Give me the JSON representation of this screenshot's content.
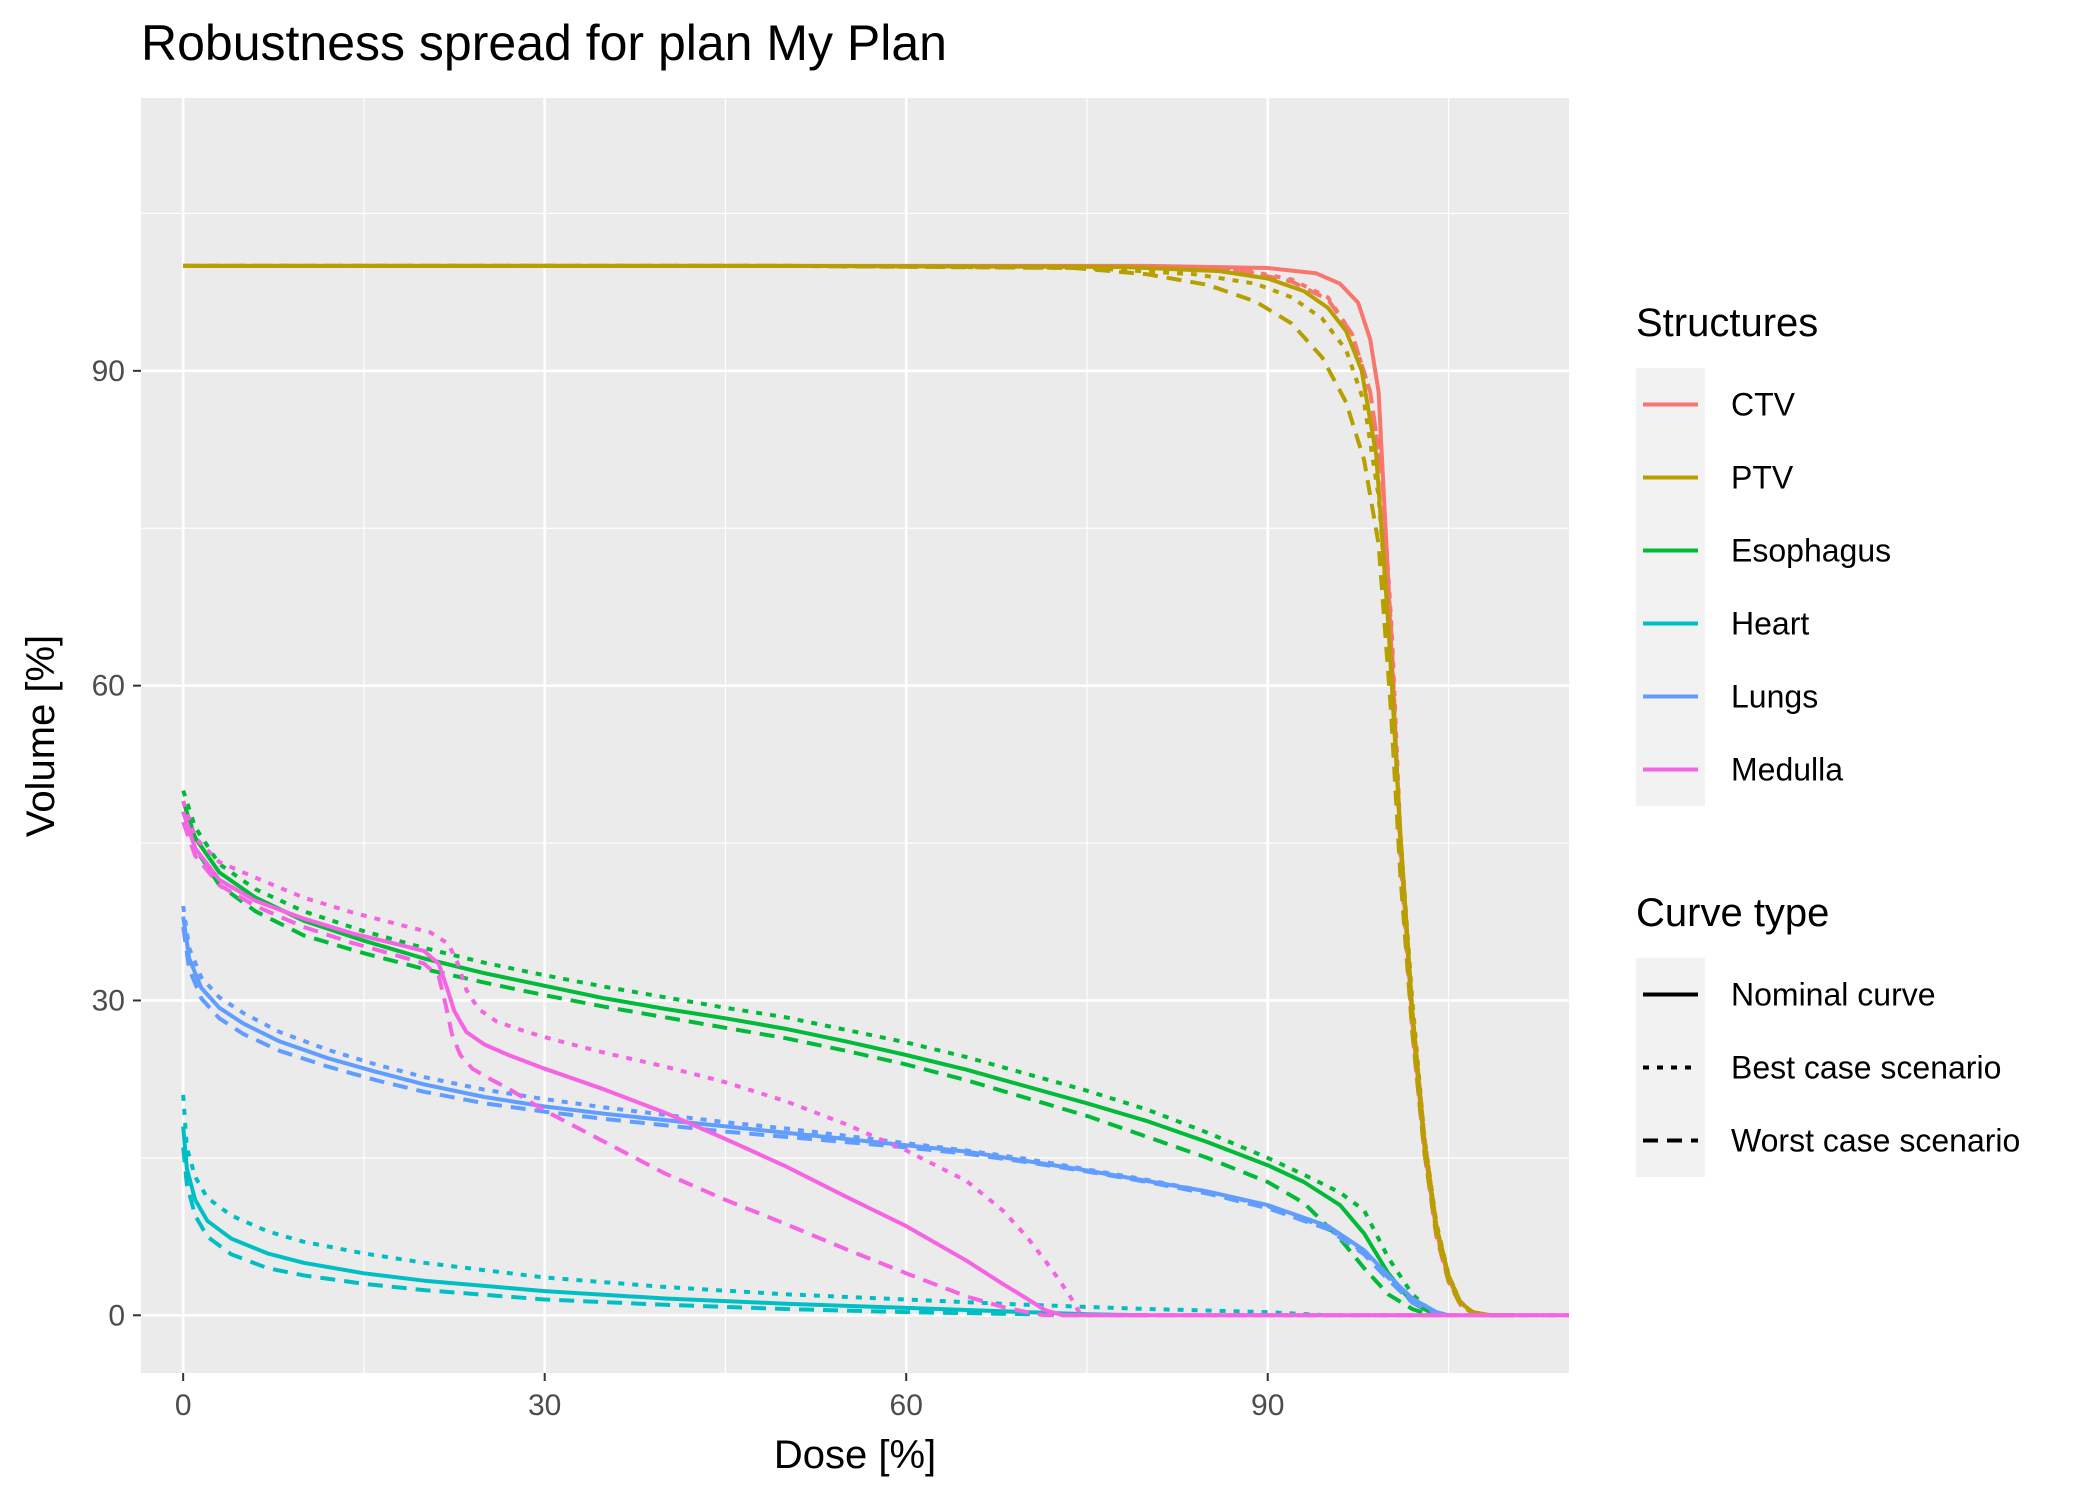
{
  "chart_data": {
    "type": "line",
    "title": "Robustness spread for plan My Plan",
    "xlabel": "Dose [%]",
    "ylabel": "Volume [%]",
    "xlim": [
      -3.5,
      115
    ],
    "ylim": [
      -5.5,
      116
    ],
    "x_ticks": [
      0,
      30,
      60,
      90
    ],
    "y_ticks": [
      0,
      30,
      60,
      90
    ],
    "grid": true,
    "legend_position": "right",
    "structures_legend": {
      "title": "Structures",
      "entries": [
        {
          "name": "CTV",
          "color": "#F8766D"
        },
        {
          "name": "PTV",
          "color": "#B79F00"
        },
        {
          "name": "Esophagus",
          "color": "#00BA38"
        },
        {
          "name": "Heart",
          "color": "#00BFC4"
        },
        {
          "name": "Lungs",
          "color": "#619CFF"
        },
        {
          "name": "Medulla",
          "color": "#F564E3"
        }
      ]
    },
    "curve_type_legend": {
      "title": "Curve type",
      "entries": [
        {
          "name": "Nominal curve",
          "dash": "solid"
        },
        {
          "name": "Best case scenario",
          "dash": "dotted"
        },
        {
          "name": "Worst case scenario",
          "dash": "dashed"
        }
      ]
    },
    "series": [
      {
        "structure": "CTV",
        "curve": "Nominal curve",
        "x": [
          0,
          40,
          80,
          90,
          94,
          96,
          97.5,
          98.5,
          99.2,
          100,
          101,
          102,
          103,
          104,
          105,
          106,
          107,
          108,
          110.5
        ],
        "y": [
          100,
          100,
          100,
          99.8,
          99.3,
          98.3,
          96.5,
          93,
          88,
          70,
          45,
          28,
          16,
          8,
          3.5,
          1.2,
          0.3,
          0,
          0
        ]
      },
      {
        "structure": "CTV",
        "curve": "Best case scenario",
        "x": [
          0,
          50,
          80,
          88,
          92,
          95,
          97,
          98.5,
          99.5,
          100.3,
          101,
          102,
          103,
          104,
          105,
          106,
          107,
          108.5,
          110.5
        ],
        "y": [
          100,
          100,
          99.9,
          99.6,
          98.7,
          97,
          93.5,
          88,
          80,
          65,
          46,
          29,
          17,
          8.5,
          3.8,
          1.3,
          0.3,
          0,
          0
        ]
      },
      {
        "structure": "CTV",
        "curve": "Worst case scenario",
        "x": [
          0,
          50,
          80,
          88,
          92,
          95,
          97,
          98.5,
          99.5,
          100.3,
          101,
          102,
          103,
          104,
          105,
          106,
          107,
          108.5,
          110.5
        ],
        "y": [
          100,
          100,
          99.9,
          99.5,
          98.5,
          96.8,
          93.5,
          88,
          80,
          64,
          44,
          27,
          15.5,
          7.5,
          3.2,
          1,
          0.2,
          0,
          0
        ]
      },
      {
        "structure": "PTV",
        "curve": "Nominal curve",
        "x": [
          0,
          50,
          78,
          86,
          90,
          93,
          95,
          96.5,
          97.8,
          99,
          100,
          101,
          102,
          103,
          104,
          105,
          106,
          107,
          108.5,
          110.5
        ],
        "y": [
          100,
          100,
          99.9,
          99.5,
          98.8,
          97.6,
          96,
          93.8,
          90,
          82,
          66,
          46,
          29,
          16.5,
          8.5,
          3.8,
          1.2,
          0.3,
          0,
          0
        ]
      },
      {
        "structure": "PTV",
        "curve": "Best case scenario",
        "x": [
          0,
          50,
          75,
          84,
          89,
          92,
          94.5,
          96.5,
          98,
          99.2,
          100.2,
          101,
          102,
          103,
          104,
          105,
          106,
          107,
          108.5,
          110.5
        ],
        "y": [
          100,
          100,
          99.8,
          99.2,
          98.3,
          97,
          95,
          92,
          87,
          78,
          63,
          46,
          30,
          17,
          8.8,
          3.9,
          1.2,
          0.3,
          0,
          0
        ]
      },
      {
        "structure": "PTV",
        "curve": "Worst case scenario",
        "x": [
          0,
          50,
          74,
          80,
          85,
          89,
          92,
          94.5,
          96.5,
          98,
          99.2,
          100.2,
          101,
          102,
          103,
          104,
          105,
          106,
          107,
          108.5,
          110.5
        ],
        "y": [
          100,
          100,
          99.8,
          99.2,
          98.2,
          96.6,
          94.5,
          91.3,
          87,
          81.5,
          73.5,
          58,
          42,
          27,
          15.5,
          7.8,
          3.3,
          1,
          0.2,
          0,
          0
        ]
      },
      {
        "structure": "Esophagus",
        "curve": "Nominal curve",
        "x": [
          0,
          1,
          3,
          6,
          10,
          15,
          20,
          25,
          30,
          35,
          40,
          45,
          50,
          55,
          60,
          65,
          70,
          75,
          80,
          85,
          90,
          93,
          96,
          98,
          100,
          102,
          104
        ],
        "y": [
          49,
          45.5,
          42.2,
          39.8,
          37.6,
          35.7,
          34,
          32.6,
          31.4,
          30.2,
          29.2,
          28.3,
          27.3,
          26.1,
          24.8,
          23.4,
          21.8,
          20.2,
          18.5,
          16.5,
          14.3,
          12.7,
          10.5,
          7.8,
          4,
          1.2,
          0
        ]
      },
      {
        "structure": "Esophagus",
        "curve": "Best case scenario",
        "x": [
          0,
          1,
          3,
          6,
          10,
          15,
          20,
          25,
          30,
          35,
          40,
          45,
          50,
          55,
          60,
          65,
          70,
          75,
          80,
          85,
          90,
          93,
          96,
          98,
          100,
          102,
          104
        ],
        "y": [
          50,
          46.5,
          43,
          40.6,
          38.5,
          36.6,
          35,
          33.6,
          32.4,
          31.3,
          30.3,
          29.3,
          28.4,
          27.2,
          26,
          24.6,
          23,
          21.4,
          19.6,
          17.4,
          15,
          13.4,
          11.7,
          10,
          5.5,
          2,
          0
        ]
      },
      {
        "structure": "Esophagus",
        "curve": "Worst case scenario",
        "x": [
          0,
          1,
          3,
          6,
          10,
          15,
          20,
          25,
          30,
          35,
          40,
          45,
          50,
          55,
          60,
          65,
          70,
          75,
          80,
          85,
          90,
          93,
          96,
          98,
          100,
          102,
          103.5
        ],
        "y": [
          48,
          44.5,
          41,
          38.5,
          36.2,
          34.5,
          33,
          31.7,
          30.5,
          29.4,
          28.4,
          27.4,
          26.4,
          25.2,
          23.9,
          22.4,
          20.7,
          19,
          17,
          15,
          12.7,
          10.7,
          7.3,
          4.5,
          2,
          0.6,
          0
        ]
      },
      {
        "structure": "Heart",
        "curve": "Nominal curve",
        "x": [
          0,
          0.3,
          1,
          2,
          4,
          7,
          10,
          15,
          20,
          30,
          40,
          50,
          60,
          70,
          75,
          80
        ],
        "y": [
          18,
          14,
          11,
          9,
          7.3,
          5.9,
          5,
          4,
          3.3,
          2.3,
          1.6,
          1.1,
          0.7,
          0.3,
          0.1,
          0
        ]
      },
      {
        "structure": "Heart",
        "curve": "Best case scenario",
        "x": [
          0,
          0.3,
          1,
          2,
          4,
          7,
          10,
          15,
          20,
          30,
          40,
          50,
          60,
          70,
          80,
          90,
          95
        ],
        "y": [
          21,
          16,
          13.2,
          11.2,
          9.5,
          8,
          7,
          5.9,
          5,
          3.6,
          2.7,
          2,
          1.5,
          1,
          0.6,
          0.3,
          0
        ]
      },
      {
        "structure": "Heart",
        "curve": "Worst case scenario",
        "x": [
          0,
          0.3,
          1,
          2,
          4,
          7,
          10,
          15,
          20,
          30,
          40,
          50,
          60,
          70,
          75
        ],
        "y": [
          16,
          12.5,
          9.5,
          7.5,
          5.8,
          4.5,
          3.8,
          3,
          2.4,
          1.5,
          1,
          0.6,
          0.3,
          0.1,
          0
        ]
      },
      {
        "structure": "Lungs",
        "curve": "Nominal curve",
        "x": [
          0,
          0.5,
          1.5,
          3,
          5,
          8,
          12,
          16,
          20,
          25,
          30,
          35,
          40,
          45,
          50,
          55,
          60,
          65,
          70,
          75,
          80,
          85,
          90,
          95,
          98,
          100,
          102,
          104,
          105
        ],
        "y": [
          38,
          34,
          31.2,
          29.3,
          27.8,
          26.1,
          24.5,
          23.2,
          22,
          20.8,
          19.9,
          19.2,
          18.6,
          18,
          17.4,
          16.8,
          16.2,
          15.6,
          14.7,
          13.8,
          12.8,
          11.8,
          10.5,
          8.5,
          6.2,
          3.8,
          1.6,
          0.3,
          0
        ]
      },
      {
        "structure": "Lungs",
        "curve": "Best case scenario",
        "x": [
          0,
          0.5,
          1.5,
          3,
          5,
          8,
          12,
          16,
          20,
          25,
          30,
          35,
          40,
          45,
          50,
          55,
          60,
          65,
          70,
          75,
          80,
          85,
          90,
          95,
          98,
          100,
          102,
          104,
          105
        ],
        "y": [
          39,
          35,
          32.2,
          30.3,
          28.8,
          27,
          25.3,
          23.9,
          22.7,
          21.5,
          20.6,
          19.8,
          19.1,
          18.4,
          17.8,
          17.1,
          16.4,
          15.7,
          14.9,
          13.9,
          12.9,
          11.8,
          10.4,
          8.3,
          6,
          3.6,
          1.4,
          0.2,
          0
        ]
      },
      {
        "structure": "Lungs",
        "curve": "Worst case scenario",
        "x": [
          0,
          0.5,
          1.5,
          3,
          5,
          8,
          12,
          16,
          20,
          25,
          30,
          35,
          40,
          45,
          50,
          55,
          60,
          65,
          70,
          75,
          80,
          85,
          90,
          95,
          98,
          100,
          102,
          104,
          105
        ],
        "y": [
          37,
          33,
          30.2,
          28.3,
          26.8,
          25.2,
          23.7,
          22.4,
          21.3,
          20.2,
          19.4,
          18.7,
          18.1,
          17.5,
          17,
          16.5,
          16,
          15.4,
          14.6,
          13.7,
          12.7,
          11.6,
          10.2,
          8.2,
          5.8,
          3.4,
          1.2,
          0.2,
          0
        ]
      },
      {
        "structure": "Medulla",
        "curve": "Nominal curve",
        "x": [
          0,
          1,
          3,
          6,
          10,
          14,
          18,
          20,
          21.2,
          21.8,
          22.5,
          23.5,
          25,
          27,
          30,
          35,
          40,
          45,
          50,
          55,
          60,
          65,
          68,
          70,
          71.5,
          73,
          120
        ],
        "y": [
          48,
          44.5,
          41.5,
          39.5,
          37.8,
          36.4,
          35.3,
          34.7,
          33.5,
          31.5,
          29,
          27,
          25.8,
          24.8,
          23.5,
          21.5,
          19.3,
          16.8,
          14.2,
          11.3,
          8.5,
          5.2,
          3,
          1.6,
          0.5,
          0,
          0
        ]
      },
      {
        "structure": "Medulla",
        "curve": "Best case scenario",
        "x": [
          0,
          1,
          3,
          6,
          10,
          14,
          18,
          20.5,
          22,
          22.8,
          23.5,
          24.5,
          26,
          28,
          30,
          35,
          40,
          45,
          50,
          55,
          60,
          65,
          68,
          70,
          72,
          73.5,
          74.5,
          120
        ],
        "y": [
          49,
          45.5,
          43.2,
          41.7,
          39.8,
          38.4,
          37.2,
          36.5,
          35.4,
          33.5,
          31,
          29.2,
          28,
          27.2,
          26.5,
          25,
          23.7,
          22.2,
          20.4,
          18.2,
          15.7,
          12.8,
          10,
          7.5,
          4.5,
          2,
          0,
          0
        ]
      },
      {
        "structure": "Medulla",
        "curve": "Worst case scenario",
        "x": [
          0,
          1,
          3,
          6,
          10,
          14,
          18,
          20,
          21.2,
          21.8,
          22.3,
          23,
          24,
          25.5,
          27,
          30,
          35,
          40,
          45,
          50,
          55,
          60,
          65,
          68,
          70,
          71.5,
          120
        ],
        "y": [
          47,
          43.8,
          41,
          39,
          37,
          35.5,
          34.2,
          33.5,
          32.3,
          29.5,
          26.8,
          24.8,
          23.5,
          22.5,
          21.6,
          19.5,
          16.5,
          13.5,
          11,
          8.7,
          6.3,
          4,
          1.8,
          0.8,
          0.3,
          0,
          0
        ]
      }
    ]
  }
}
